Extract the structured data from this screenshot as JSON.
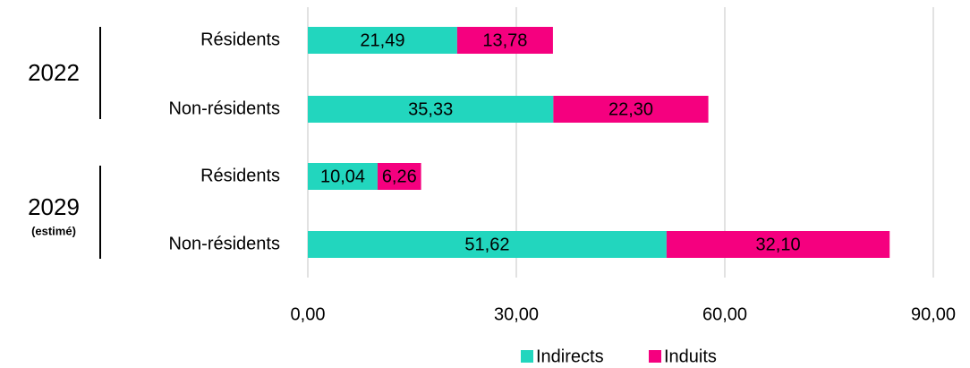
{
  "chart_data": {
    "type": "stacked-barh",
    "group_labels": [
      "2022",
      "2029"
    ],
    "group_note": "(estimé)",
    "categories": [
      "Résidents",
      "Non-résidents",
      "Résidents",
      "Non-résidents"
    ],
    "series": [
      {
        "name": "Indirects",
        "color": "#22d6be",
        "values": [
          21.49,
          35.33,
          10.04,
          51.62
        ],
        "value_labels": [
          "21,49",
          "35,33",
          "10,04",
          "51,62"
        ]
      },
      {
        "name": "Induits",
        "color": "#f5007f",
        "values": [
          13.78,
          22.3,
          6.26,
          32.1
        ],
        "value_labels": [
          "13,78",
          "22,30",
          "6,26",
          "32,10"
        ]
      }
    ],
    "xlim": [
      0,
      90
    ],
    "xticks": [
      {
        "value": 0,
        "label": "0,00"
      },
      {
        "value": 30,
        "label": "30,00"
      },
      {
        "value": 60,
        "label": "60,00"
      },
      {
        "value": 90,
        "label": "90,00"
      }
    ],
    "grid": true,
    "legend": "bottom"
  }
}
